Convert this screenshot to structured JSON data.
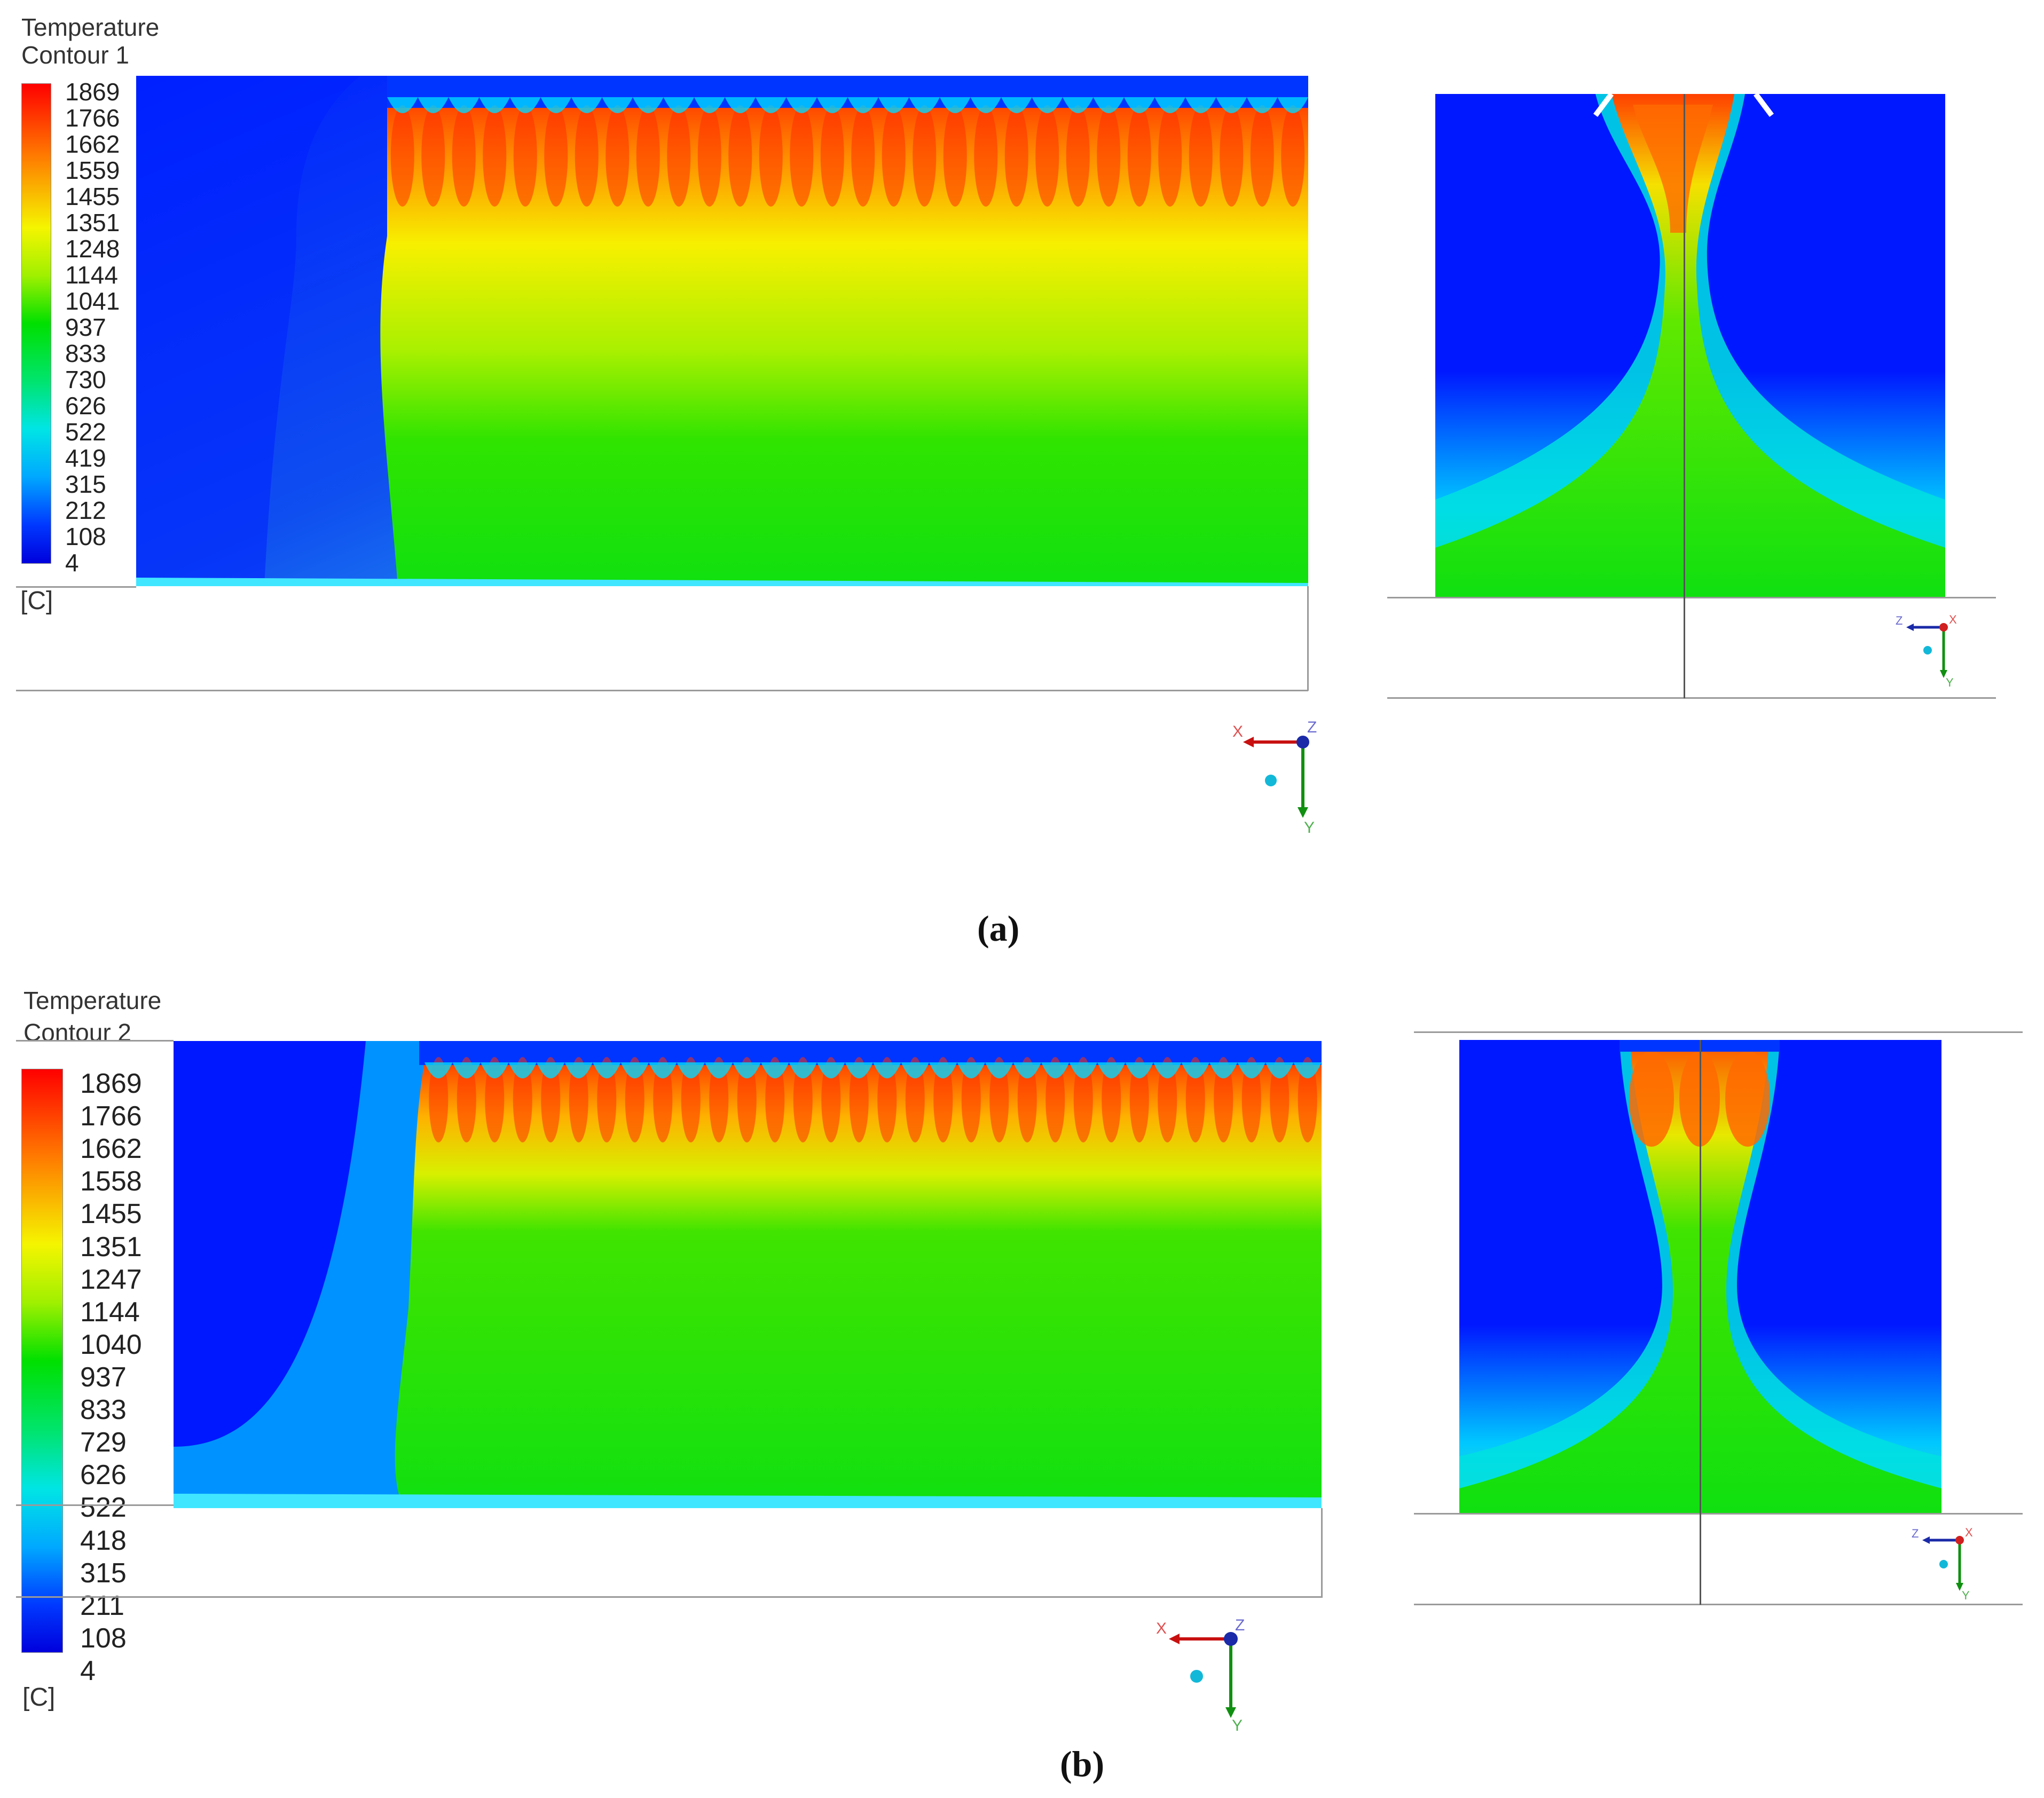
{
  "panels": [
    {
      "id": "a",
      "title": "Temperature",
      "subtitle": "Contour 1",
      "unit": "[C]",
      "caption": "(a)",
      "legend_values": [
        "1869",
        "1766",
        "1662",
        "1559",
        "1455",
        "1351",
        "1248",
        "1144",
        "1041",
        "937",
        "833",
        "730",
        "626",
        "522",
        "419",
        "315",
        "212",
        "108",
        "4"
      ],
      "axes_main": {
        "x": "X",
        "y": "Y",
        "z": "Z"
      },
      "axes_side": {
        "x": "X",
        "y": "Y",
        "z": "Z"
      }
    },
    {
      "id": "b",
      "title": "Temperature",
      "subtitle": "Contour 2",
      "unit": "[C]",
      "caption": "(b)",
      "legend_values": [
        "1869",
        "1766",
        "1662",
        "1558",
        "1455",
        "1351",
        "1247",
        "1144",
        "1040",
        "937",
        "833",
        "729",
        "626",
        "522",
        "418",
        "315",
        "211",
        "108",
        "4"
      ],
      "axes_main": {
        "x": "X",
        "y": "Y",
        "z": "Z"
      },
      "axes_side": {
        "x": "X",
        "y": "Y",
        "z": "Z"
      }
    }
  ],
  "colors": {
    "blue": "#0018ff",
    "cyan": "#00e5ff",
    "green": "#10e010",
    "yellow": "#f2f200",
    "orange": "#ff8a00",
    "red": "#ff1a00"
  }
}
